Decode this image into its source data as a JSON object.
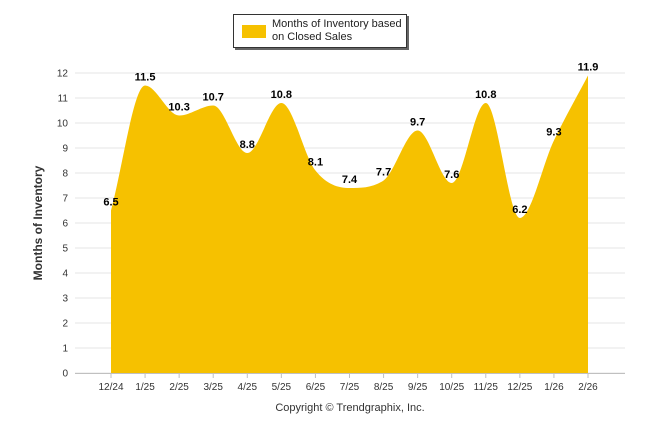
{
  "chart_data": {
    "type": "area",
    "title": "",
    "series": [
      {
        "name": "Months of Inventory based on Closed Sales",
        "values": [
          6.5,
          11.5,
          10.3,
          10.7,
          8.8,
          10.8,
          8.1,
          7.4,
          7.7,
          9.7,
          7.6,
          10.8,
          6.2,
          9.3,
          11.9
        ]
      }
    ],
    "categories": [
      "12/24",
      "1/25",
      "2/25",
      "3/25",
      "4/25",
      "5/25",
      "6/25",
      "7/25",
      "8/25",
      "9/25",
      "10/25",
      "11/25",
      "12/25",
      "1/26",
      "2/26"
    ],
    "data_labels": [
      "6.5",
      "11.5",
      "10.3",
      "10.7",
      "8.8",
      "10.8",
      "8.1",
      "7.4",
      "7.7",
      "9.7",
      "7.6",
      "10.8",
      "6.2",
      "9.3",
      "11.9"
    ],
    "ylabel": "Months of Inventory",
    "xlabel": "",
    "ylim": [
      0,
      12
    ],
    "y_ticks": [
      "0",
      "1",
      "2",
      "3",
      "4",
      "5",
      "6",
      "7",
      "8",
      "9",
      "10",
      "11",
      "12"
    ],
    "grid": true,
    "legend_position": "top-center",
    "fill_color": "#F6C100"
  },
  "legend": {
    "label": "Months of Inventory based on Closed Sales",
    "color": "#F6C100"
  },
  "footer": {
    "copyright": "Copyright © Trendgraphix, Inc."
  }
}
